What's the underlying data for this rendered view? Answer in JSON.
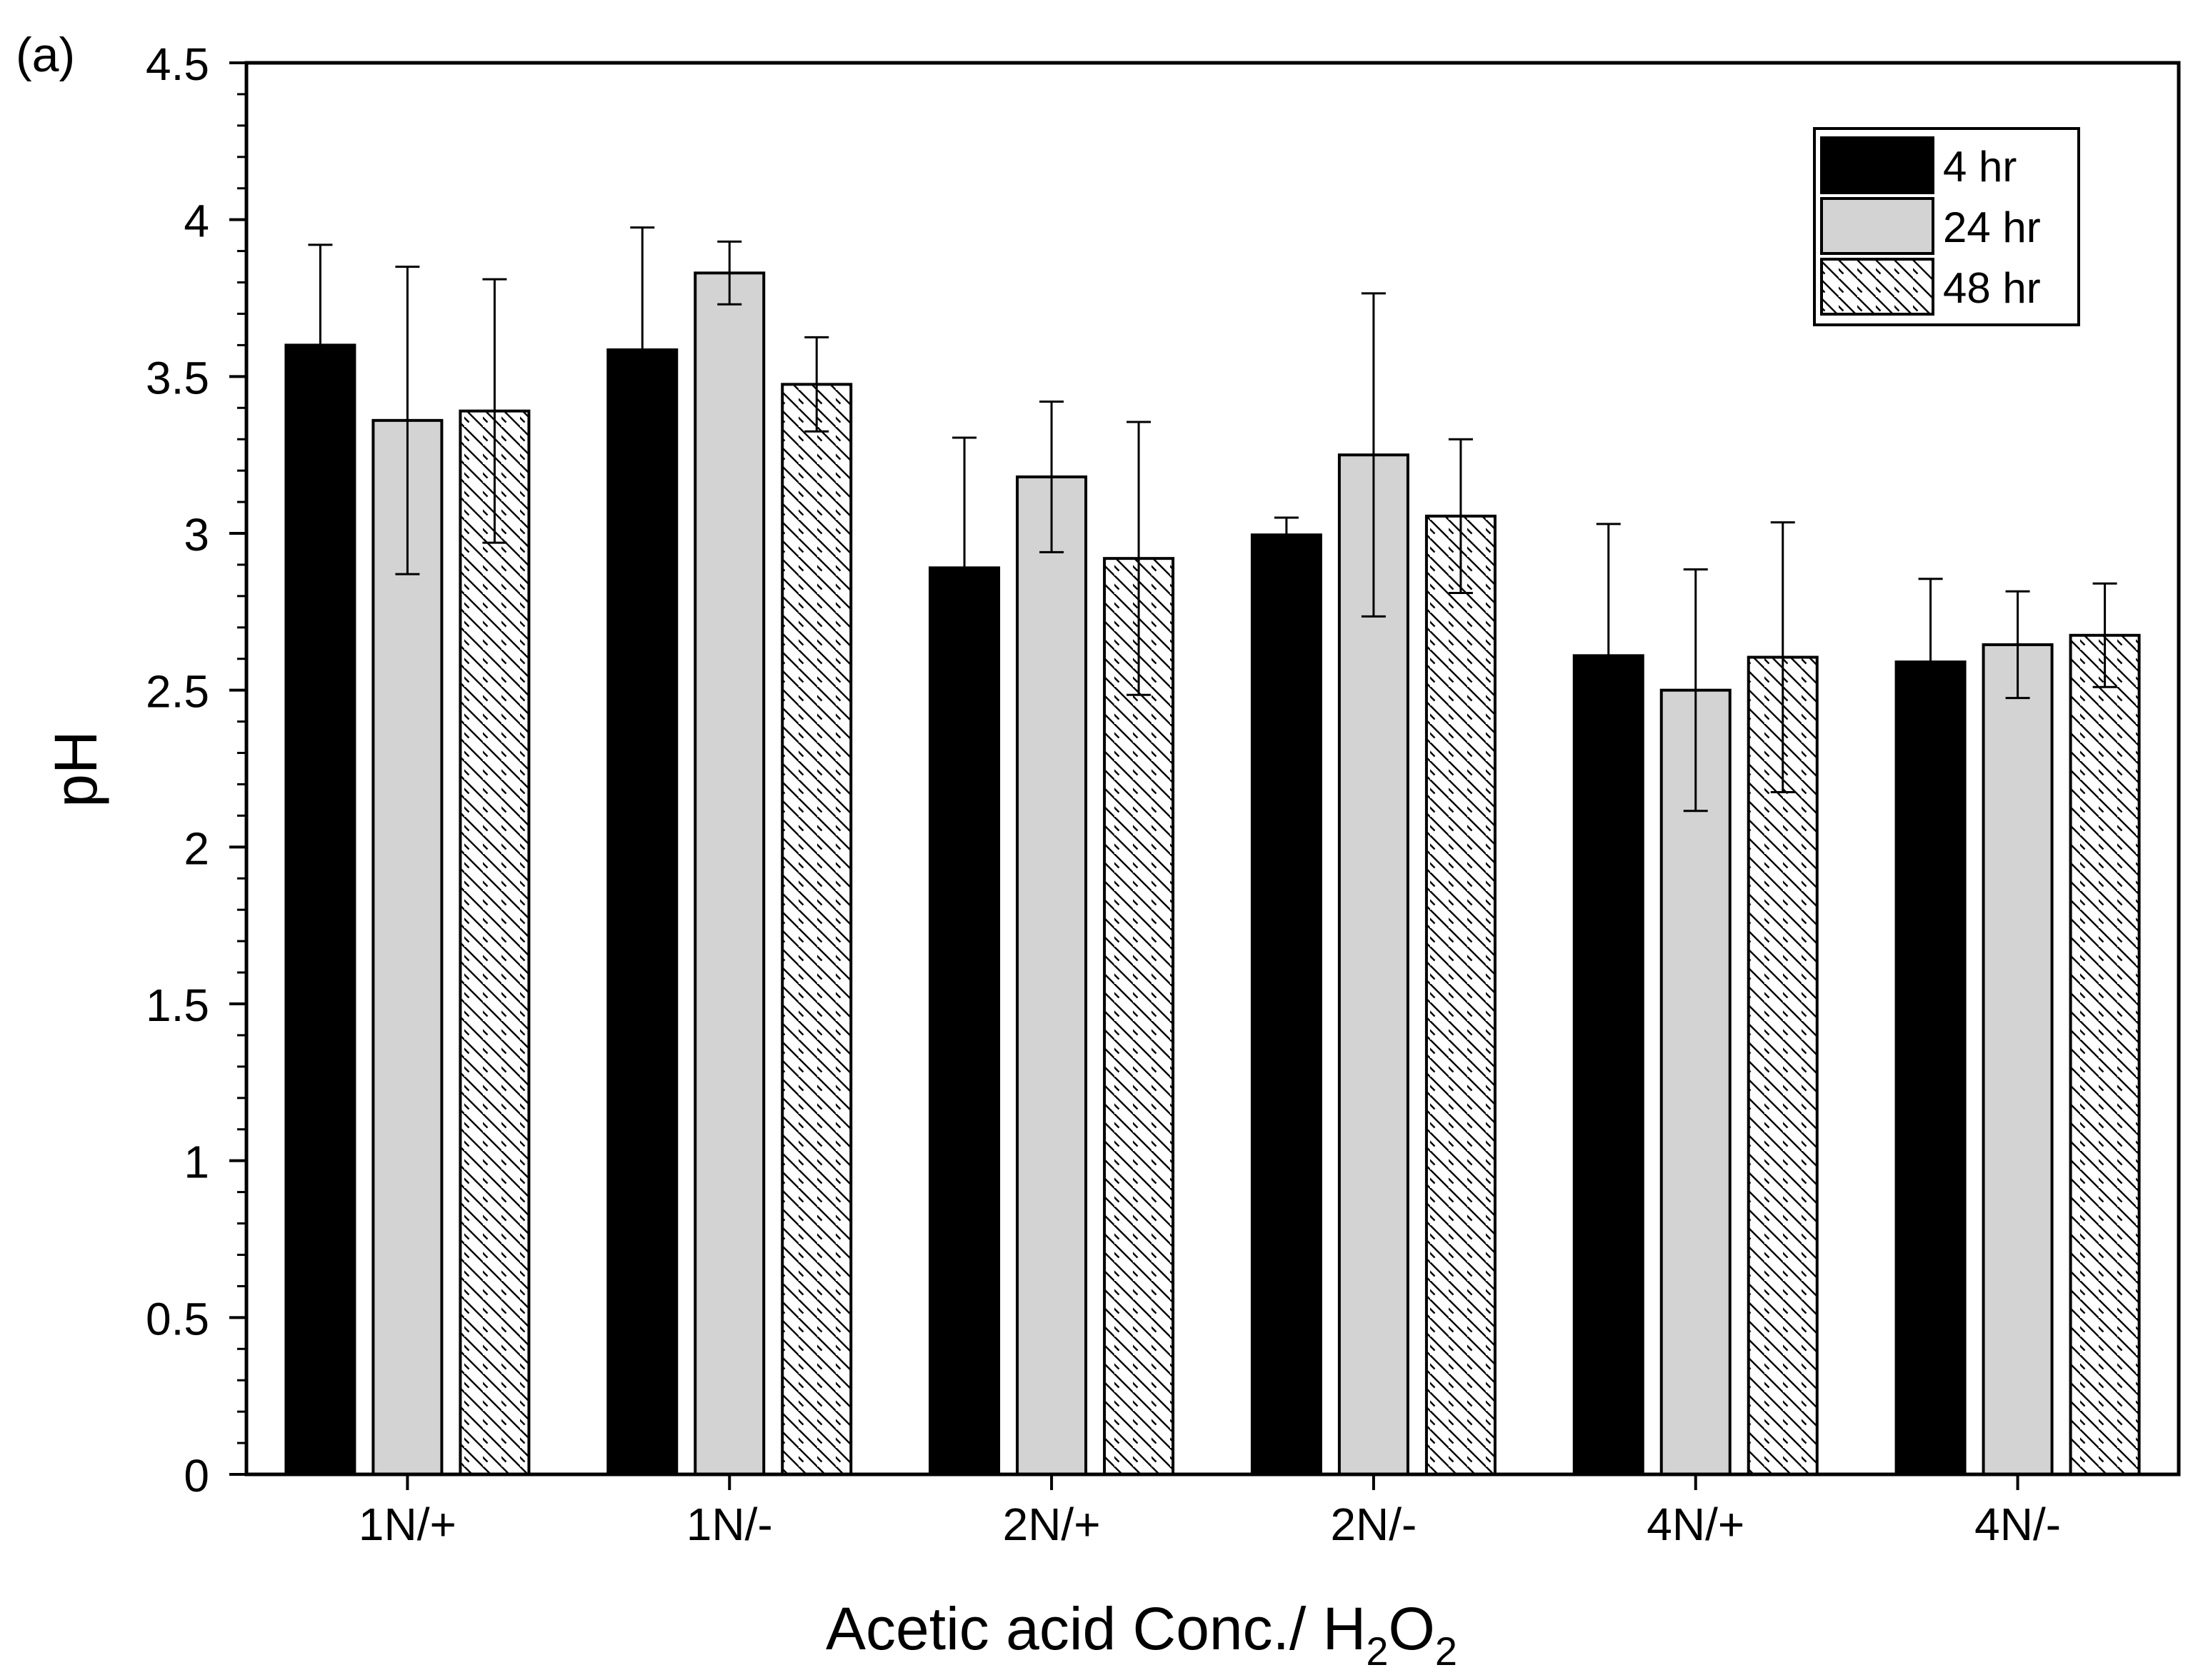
{
  "chart_data": {
    "type": "bar",
    "panel_label": "(a)",
    "title": "",
    "xlabel": {
      "main": "Acetic acid Conc./ H",
      "sub1": "2",
      "mid": "O",
      "sub2": "2"
    },
    "ylabel": "pH",
    "ylim": [
      0,
      4.5
    ],
    "yticks": [
      "0",
      "0.5",
      "1",
      "1.5",
      "2",
      "2.5",
      "3",
      "3.5",
      "4",
      "4.5"
    ],
    "grid": false,
    "legend_position": "top-right",
    "categories": [
      "1N/+",
      "1N/-",
      "2N/+",
      "2N/-",
      "4N/+",
      "4N/-"
    ],
    "series": [
      {
        "name": "4 hr",
        "fill": "#000000",
        "pattern": "solid",
        "values": [
          3.6,
          3.585,
          2.89,
          2.995,
          2.61,
          2.59
        ],
        "errors": [
          0.32,
          0.39,
          0.415,
          0.055,
          0.42,
          0.265
        ]
      },
      {
        "name": "24 hr",
        "fill": "#d3d3d3",
        "pattern": "solid",
        "values": [
          3.36,
          3.83,
          3.18,
          3.25,
          2.5,
          2.645
        ],
        "errors": [
          0.49,
          0.1,
          0.24,
          0.515,
          0.385,
          0.17
        ]
      },
      {
        "name": "48 hr",
        "fill": "#ffffff",
        "pattern": "hatch",
        "values": [
          3.39,
          3.475,
          2.92,
          3.055,
          2.605,
          2.675
        ],
        "errors": [
          0.42,
          0.15,
          0.435,
          0.245,
          0.43,
          0.165
        ]
      }
    ]
  }
}
